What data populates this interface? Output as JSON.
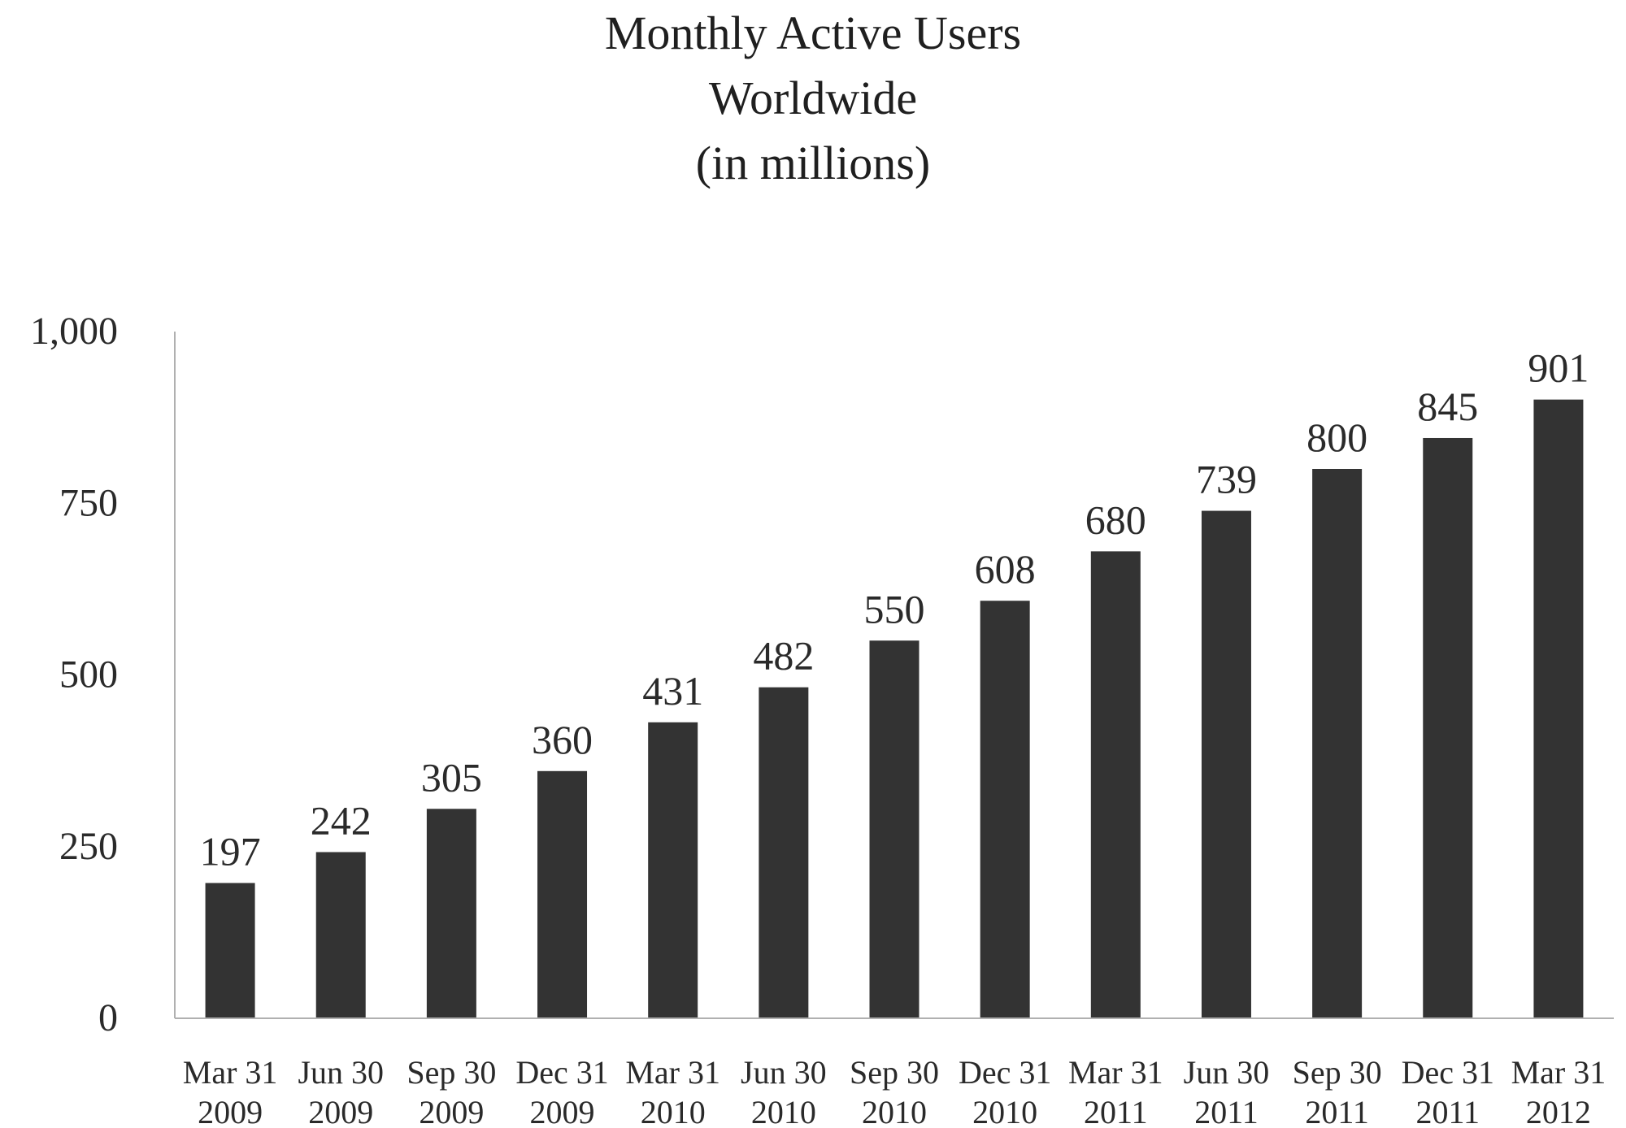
{
  "chart_data": {
    "type": "bar",
    "title_lines": [
      "Monthly Active Users",
      "Worldwide",
      "(in millions)"
    ],
    "xlabel": "",
    "ylabel": "",
    "categories": [
      [
        "Mar 31",
        "2009"
      ],
      [
        "Jun 30",
        "2009"
      ],
      [
        "Sep 30",
        "2009"
      ],
      [
        "Dec 31",
        "2009"
      ],
      [
        "Mar 31",
        "2010"
      ],
      [
        "Jun 30",
        "2010"
      ],
      [
        "Sep 30",
        "2010"
      ],
      [
        "Dec 31",
        "2010"
      ],
      [
        "Mar 31",
        "2011"
      ],
      [
        "Jun 30",
        "2011"
      ],
      [
        "Sep 30",
        "2011"
      ],
      [
        "Dec 31",
        "2011"
      ],
      [
        "Mar 31",
        "2012"
      ]
    ],
    "values": [
      197,
      242,
      305,
      360,
      431,
      482,
      550,
      608,
      680,
      739,
      800,
      845,
      901
    ],
    "data_labels": [
      "197",
      "242",
      "305",
      "360",
      "431",
      "482",
      "550",
      "608",
      "680",
      "739",
      "800",
      "845",
      "901"
    ],
    "ylim": [
      0,
      1000
    ],
    "yticks": [
      0,
      250,
      500,
      750,
      1000
    ],
    "ytick_labels": [
      "0",
      "250",
      "500",
      "750",
      "1,000"
    ],
    "grid": false,
    "legend": "none",
    "bar_color": "#333333",
    "axis_color": "#b0b0b0"
  }
}
